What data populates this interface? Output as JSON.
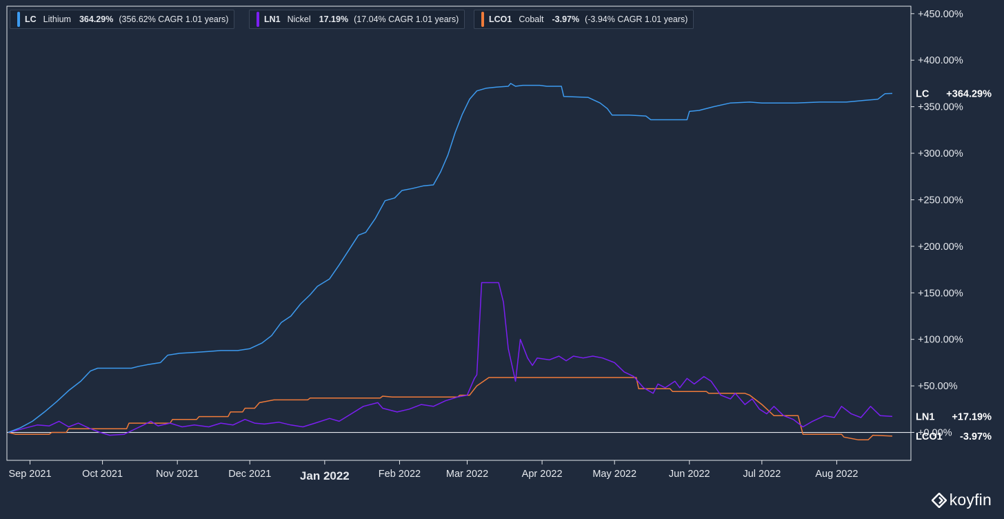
{
  "colors": {
    "background": "#1f2a3c",
    "axis": "#e6e9ee",
    "lithium": "#3d9bf0",
    "nickel": "#7b1ff2",
    "cobalt": "#f07b3a"
  },
  "legend": [
    {
      "ticker": "LC",
      "name": "Lithium",
      "pct": "364.29%",
      "cagr": "(356.62% CAGR 1.01 years)",
      "color": "#3d9bf0"
    },
    {
      "ticker": "LN1",
      "name": "Nickel",
      "pct": "17.19%",
      "cagr": "(17.04% CAGR 1.01 years)",
      "color": "#7b1ff2"
    },
    {
      "ticker": "LCO1",
      "name": "Cobalt",
      "pct": "-3.97%",
      "cagr": "(-3.94% CAGR 1.01 years)",
      "color": "#f07b3a"
    }
  ],
  "branding": {
    "logo_text": "koyfin",
    "logo_icon": "koyfin-logo-icon"
  },
  "chart_data": {
    "type": "line",
    "x_axis": {
      "start": "2021-08-23",
      "end": "2022-08-24",
      "ticks": [
        {
          "date": "2021-09-01",
          "label": "Sep 2021",
          "bold": false
        },
        {
          "date": "2021-10-01",
          "label": "Oct 2021",
          "bold": false
        },
        {
          "date": "2021-11-01",
          "label": "Nov 2021",
          "bold": false
        },
        {
          "date": "2021-12-01",
          "label": "Dec 2021",
          "bold": false
        },
        {
          "date": "2022-01-01",
          "label": "Jan 2022",
          "bold": true
        },
        {
          "date": "2022-02-01",
          "label": "Feb 2022",
          "bold": false
        },
        {
          "date": "2022-03-01",
          "label": "Mar 2022",
          "bold": false
        },
        {
          "date": "2022-04-01",
          "label": "Apr 2022",
          "bold": false
        },
        {
          "date": "2022-05-01",
          "label": "May 2022",
          "bold": false
        },
        {
          "date": "2022-06-01",
          "label": "Jun 2022",
          "bold": false
        },
        {
          "date": "2022-07-01",
          "label": "Jul 2022",
          "bold": false
        },
        {
          "date": "2022-08-01",
          "label": "Aug 2022",
          "bold": false
        }
      ]
    },
    "y_axis": {
      "min": -30,
      "max": 458,
      "ticks": [
        {
          "value": 0,
          "label": "+0.00%"
        },
        {
          "value": 50,
          "label": "+50.00%"
        },
        {
          "value": 100,
          "label": "+100.00%"
        },
        {
          "value": 150,
          "label": "+150.00%"
        },
        {
          "value": 200,
          "label": "+200.00%"
        },
        {
          "value": 250,
          "label": "+250.00%"
        },
        {
          "value": 300,
          "label": "+300.00%"
        },
        {
          "value": 350,
          "label": "+350.00%"
        },
        {
          "value": 400,
          "label": "+400.00%"
        },
        {
          "value": 450,
          "label": "+450.00%"
        }
      ]
    },
    "series": [
      {
        "ticker": "LC",
        "name": "Lithium",
        "color": "#3d9bf0",
        "end_label": "+364.29%",
        "points": [
          [
            "2021-08-23",
            0
          ],
          [
            "2021-08-28",
            5
          ],
          [
            "2021-09-02",
            12
          ],
          [
            "2021-09-07",
            22
          ],
          [
            "2021-09-12",
            33
          ],
          [
            "2021-09-17",
            45
          ],
          [
            "2021-09-22",
            55
          ],
          [
            "2021-09-26",
            66
          ],
          [
            "2021-09-29",
            69
          ],
          [
            "2021-10-06",
            69
          ],
          [
            "2021-10-13",
            69
          ],
          [
            "2021-10-16",
            71
          ],
          [
            "2021-10-20",
            73
          ],
          [
            "2021-10-25",
            75
          ],
          [
            "2021-10-28",
            83
          ],
          [
            "2021-11-02",
            85
          ],
          [
            "2021-11-08",
            86
          ],
          [
            "2021-11-14",
            87
          ],
          [
            "2021-11-19",
            88
          ],
          [
            "2021-11-26",
            88
          ],
          [
            "2021-12-01",
            90
          ],
          [
            "2021-12-06",
            96
          ],
          [
            "2021-12-10",
            104
          ],
          [
            "2021-12-14",
            118
          ],
          [
            "2021-12-18",
            125
          ],
          [
            "2021-12-22",
            138
          ],
          [
            "2021-12-26",
            148
          ],
          [
            "2021-12-29",
            157
          ],
          [
            "2022-01-03",
            165
          ],
          [
            "2022-01-07",
            180
          ],
          [
            "2022-01-11",
            196
          ],
          [
            "2022-01-15",
            212
          ],
          [
            "2022-01-18",
            215
          ],
          [
            "2022-01-22",
            230
          ],
          [
            "2022-01-26",
            249
          ],
          [
            "2022-01-30",
            252
          ],
          [
            "2022-02-02",
            260
          ],
          [
            "2022-02-06",
            262
          ],
          [
            "2022-02-11",
            265
          ],
          [
            "2022-02-15",
            266
          ],
          [
            "2022-02-18",
            280
          ],
          [
            "2022-02-21",
            298
          ],
          [
            "2022-02-24",
            322
          ],
          [
            "2022-02-27",
            342
          ],
          [
            "2022-03-02",
            358
          ],
          [
            "2022-03-05",
            367
          ],
          [
            "2022-03-09",
            370
          ],
          [
            "2022-03-13",
            371
          ],
          [
            "2022-03-18",
            372
          ],
          [
            "2022-03-19",
            375
          ],
          [
            "2022-03-21",
            372
          ],
          [
            "2022-03-24",
            373
          ],
          [
            "2022-03-31",
            373
          ],
          [
            "2022-04-03",
            372
          ],
          [
            "2022-04-09",
            372
          ],
          [
            "2022-04-10",
            361
          ],
          [
            "2022-04-20",
            360
          ],
          [
            "2022-04-25",
            354
          ],
          [
            "2022-04-28",
            348
          ],
          [
            "2022-04-30",
            341
          ],
          [
            "2022-05-07",
            341
          ],
          [
            "2022-05-14",
            340
          ],
          [
            "2022-05-16",
            336
          ],
          [
            "2022-05-31",
            336
          ],
          [
            "2022-06-01",
            345
          ],
          [
            "2022-06-05",
            346
          ],
          [
            "2022-06-11",
            350
          ],
          [
            "2022-06-18",
            354
          ],
          [
            "2022-06-26",
            355
          ],
          [
            "2022-07-01",
            354
          ],
          [
            "2022-07-15",
            354
          ],
          [
            "2022-07-25",
            355
          ],
          [
            "2022-08-05",
            355
          ],
          [
            "2022-08-13",
            357
          ],
          [
            "2022-08-18",
            358
          ],
          [
            "2022-08-21",
            364
          ],
          [
            "2022-08-24",
            364.29
          ]
        ]
      },
      {
        "ticker": "LN1",
        "name": "Nickel",
        "color": "#7b1ff2",
        "end_label": "+17.19%",
        "points": [
          [
            "2021-08-23",
            0
          ],
          [
            "2021-08-29",
            4
          ],
          [
            "2021-09-04",
            8
          ],
          [
            "2021-09-09",
            7
          ],
          [
            "2021-09-13",
            12
          ],
          [
            "2021-09-17",
            6
          ],
          [
            "2021-09-21",
            10
          ],
          [
            "2021-09-26",
            4
          ],
          [
            "2021-09-30",
            0
          ],
          [
            "2021-10-04",
            -3
          ],
          [
            "2021-10-10",
            -2
          ],
          [
            "2021-10-14",
            3
          ],
          [
            "2021-10-18",
            8
          ],
          [
            "2021-10-21",
            12
          ],
          [
            "2021-10-24",
            7
          ],
          [
            "2021-10-29",
            10
          ],
          [
            "2021-11-03",
            6
          ],
          [
            "2021-11-08",
            8
          ],
          [
            "2021-11-14",
            6
          ],
          [
            "2021-11-19",
            10
          ],
          [
            "2021-11-24",
            8
          ],
          [
            "2021-11-29",
            14
          ],
          [
            "2021-12-03",
            10
          ],
          [
            "2021-12-07",
            9
          ],
          [
            "2021-12-13",
            11
          ],
          [
            "2021-12-18",
            8
          ],
          [
            "2021-12-23",
            6
          ],
          [
            "2021-12-28",
            10
          ],
          [
            "2022-01-03",
            15
          ],
          [
            "2022-01-07",
            12
          ],
          [
            "2022-01-12",
            20
          ],
          [
            "2022-01-17",
            28
          ],
          [
            "2022-01-23",
            32
          ],
          [
            "2022-01-25",
            26
          ],
          [
            "2022-01-31",
            22
          ],
          [
            "2022-02-05",
            25
          ],
          [
            "2022-02-10",
            30
          ],
          [
            "2022-02-15",
            28
          ],
          [
            "2022-02-20",
            34
          ],
          [
            "2022-02-25",
            38
          ],
          [
            "2022-03-01",
            40
          ],
          [
            "2022-03-04",
            58
          ],
          [
            "2022-03-05",
            62
          ],
          [
            "2022-03-07",
            161
          ],
          [
            "2022-03-14",
            161
          ],
          [
            "2022-03-16",
            140
          ],
          [
            "2022-03-18",
            90
          ],
          [
            "2022-03-21",
            55
          ],
          [
            "2022-03-23",
            100
          ],
          [
            "2022-03-26",
            80
          ],
          [
            "2022-03-28",
            72
          ],
          [
            "2022-03-30",
            80
          ],
          [
            "2022-04-04",
            78
          ],
          [
            "2022-04-08",
            82
          ],
          [
            "2022-04-11",
            77
          ],
          [
            "2022-04-14",
            82
          ],
          [
            "2022-04-18",
            80
          ],
          [
            "2022-04-22",
            82
          ],
          [
            "2022-04-26",
            80
          ],
          [
            "2022-05-01",
            75
          ],
          [
            "2022-05-05",
            65
          ],
          [
            "2022-05-09",
            60
          ],
          [
            "2022-05-13",
            48
          ],
          [
            "2022-05-17",
            42
          ],
          [
            "2022-05-19",
            52
          ],
          [
            "2022-05-22",
            48
          ],
          [
            "2022-05-26",
            55
          ],
          [
            "2022-05-28",
            48
          ],
          [
            "2022-05-31",
            58
          ],
          [
            "2022-06-03",
            52
          ],
          [
            "2022-06-07",
            60
          ],
          [
            "2022-06-10",
            55
          ],
          [
            "2022-06-14",
            40
          ],
          [
            "2022-06-18",
            36
          ],
          [
            "2022-06-20",
            42
          ],
          [
            "2022-06-24",
            30
          ],
          [
            "2022-06-27",
            36
          ],
          [
            "2022-06-30",
            25
          ],
          [
            "2022-07-03",
            20
          ],
          [
            "2022-07-06",
            28
          ],
          [
            "2022-07-10",
            18
          ],
          [
            "2022-07-14",
            14
          ],
          [
            "2022-07-18",
            6
          ],
          [
            "2022-07-22",
            12
          ],
          [
            "2022-07-27",
            18
          ],
          [
            "2022-07-31",
            16
          ],
          [
            "2022-08-03",
            28
          ],
          [
            "2022-08-07",
            20
          ],
          [
            "2022-08-11",
            16
          ],
          [
            "2022-08-15",
            28
          ],
          [
            "2022-08-19",
            18
          ],
          [
            "2022-08-24",
            17.19
          ]
        ]
      },
      {
        "ticker": "LCO1",
        "name": "Cobalt",
        "color": "#f07b3a",
        "end_label": "-3.97%",
        "points": [
          [
            "2021-08-23",
            0
          ],
          [
            "2021-08-26",
            -2
          ],
          [
            "2021-09-09",
            -2
          ],
          [
            "2021-09-10",
            0
          ],
          [
            "2021-09-16",
            0
          ],
          [
            "2021-09-17",
            4
          ],
          [
            "2021-10-11",
            4
          ],
          [
            "2021-10-12",
            10
          ],
          [
            "2021-10-29",
            10
          ],
          [
            "2021-10-30",
            14
          ],
          [
            "2021-11-09",
            14
          ],
          [
            "2021-11-10",
            17
          ],
          [
            "2021-11-22",
            17
          ],
          [
            "2021-11-23",
            22
          ],
          [
            "2021-11-28",
            22
          ],
          [
            "2021-11-29",
            26
          ],
          [
            "2021-12-03",
            26
          ],
          [
            "2021-12-05",
            32
          ],
          [
            "2021-12-11",
            35
          ],
          [
            "2021-12-25",
            35
          ],
          [
            "2021-12-26",
            37
          ],
          [
            "2022-01-24",
            37
          ],
          [
            "2022-01-25",
            39
          ],
          [
            "2022-01-29",
            38
          ],
          [
            "2022-02-25",
            38
          ],
          [
            "2022-02-26",
            40
          ],
          [
            "2022-03-02",
            40
          ],
          [
            "2022-03-05",
            50
          ],
          [
            "2022-03-10",
            59
          ],
          [
            "2022-05-10",
            59
          ],
          [
            "2022-05-11",
            47
          ],
          [
            "2022-05-24",
            47
          ],
          [
            "2022-05-25",
            44
          ],
          [
            "2022-06-08",
            44
          ],
          [
            "2022-06-09",
            42
          ],
          [
            "2022-06-24",
            42
          ],
          [
            "2022-06-26",
            40
          ],
          [
            "2022-07-01",
            30
          ],
          [
            "2022-07-06",
            18
          ],
          [
            "2022-07-16",
            18
          ],
          [
            "2022-07-18",
            -2
          ],
          [
            "2022-08-03",
            -2
          ],
          [
            "2022-08-04",
            -5
          ],
          [
            "2022-08-10",
            -8
          ],
          [
            "2022-08-14",
            -8
          ],
          [
            "2022-08-16",
            -3
          ],
          [
            "2022-08-24",
            -3.97
          ]
        ]
      }
    ]
  }
}
